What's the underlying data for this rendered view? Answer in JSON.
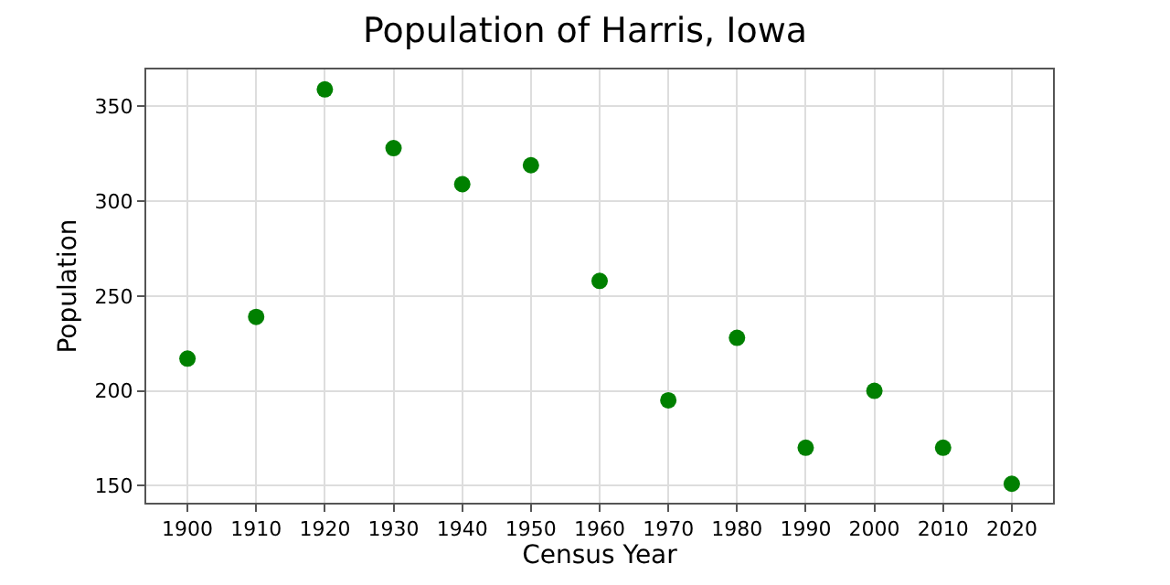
{
  "chart_data": {
    "type": "scatter",
    "title": "Population of Harris, Iowa",
    "xlabel": "Census Year",
    "ylabel": "Population",
    "x": [
      1900,
      1910,
      1920,
      1930,
      1940,
      1950,
      1960,
      1970,
      1980,
      1990,
      2000,
      2010,
      2020
    ],
    "series": [
      {
        "color": "#008000",
        "values": [
          217,
          239,
          359,
          328,
          309,
          319,
          258,
          195,
          228,
          170,
          200,
          170,
          151
        ]
      }
    ],
    "xlim": [
      1894,
      2026
    ],
    "xticks": [
      1900,
      1910,
      1920,
      1930,
      1940,
      1950,
      1960,
      1970,
      1980,
      1990,
      2000,
      2010,
      2020
    ],
    "ylim": [
      141,
      369.5
    ],
    "yticks": [
      150,
      200,
      250,
      300,
      350
    ],
    "grid": true,
    "marker": "circle"
  }
}
